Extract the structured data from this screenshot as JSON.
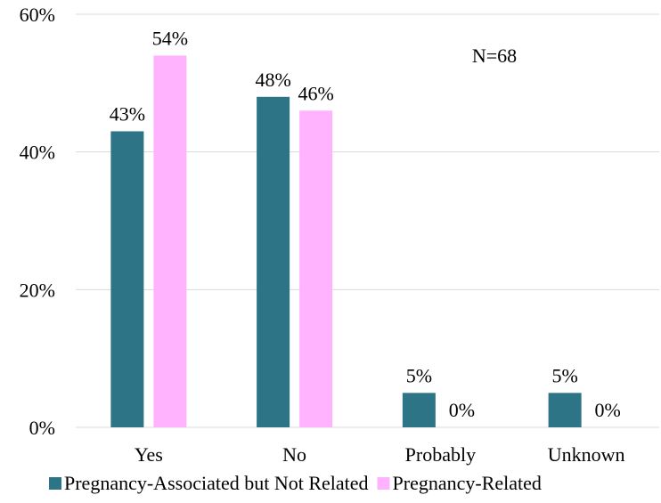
{
  "chart_data": {
    "type": "bar",
    "categories": [
      "Yes",
      "No",
      "Probably",
      "Unknown"
    ],
    "series": [
      {
        "name": "Pregnancy-Associated but Not Related",
        "color": "#2e7487",
        "values": [
          43,
          48,
          5,
          5
        ],
        "labels": [
          "43%",
          "48%",
          "5%",
          "5%"
        ]
      },
      {
        "name": "Pregnancy-Related",
        "color": "#ffb3ff",
        "values": [
          54,
          46,
          0,
          0
        ],
        "labels": [
          "54%",
          "46%",
          "0%",
          "0%"
        ]
      }
    ],
    "yticks": [
      "0%",
      "20%",
      "40%",
      "60%"
    ],
    "ytick_values": [
      0,
      20,
      40,
      60
    ],
    "ylim": [
      0,
      60
    ],
    "title": "",
    "xlabel": "",
    "ylabel": "",
    "grid": true,
    "legend_position": "bottom",
    "annotation": "N=68"
  }
}
